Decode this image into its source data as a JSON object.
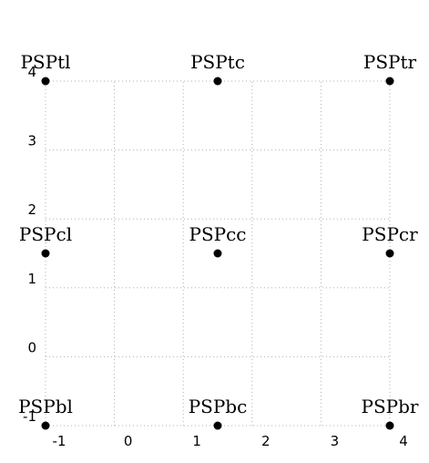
{
  "diagram": {
    "type": "grid-points",
    "x_range": [
      -1,
      4
    ],
    "y_range": [
      -1,
      4
    ],
    "x_ticks": [
      "-1",
      "0",
      "1",
      "2",
      "3",
      "4"
    ],
    "y_ticks": [
      "-1",
      "0",
      "1",
      "2",
      "3",
      "4"
    ],
    "points": [
      {
        "name": "PSPtl",
        "x": -1,
        "y": 4
      },
      {
        "name": "PSPtc",
        "x": 1.5,
        "y": 4
      },
      {
        "name": "PSPtr",
        "x": 4,
        "y": 4
      },
      {
        "name": "PSPcl",
        "x": -1,
        "y": 1.5
      },
      {
        "name": "PSPcc",
        "x": 1.5,
        "y": 1.5
      },
      {
        "name": "PSPcr",
        "x": 4,
        "y": 1.5
      },
      {
        "name": "PSPbl",
        "x": -1,
        "y": -1
      },
      {
        "name": "PSPbc",
        "x": 1.5,
        "y": -1
      },
      {
        "name": "PSPbr",
        "x": 4,
        "y": -1
      }
    ]
  }
}
